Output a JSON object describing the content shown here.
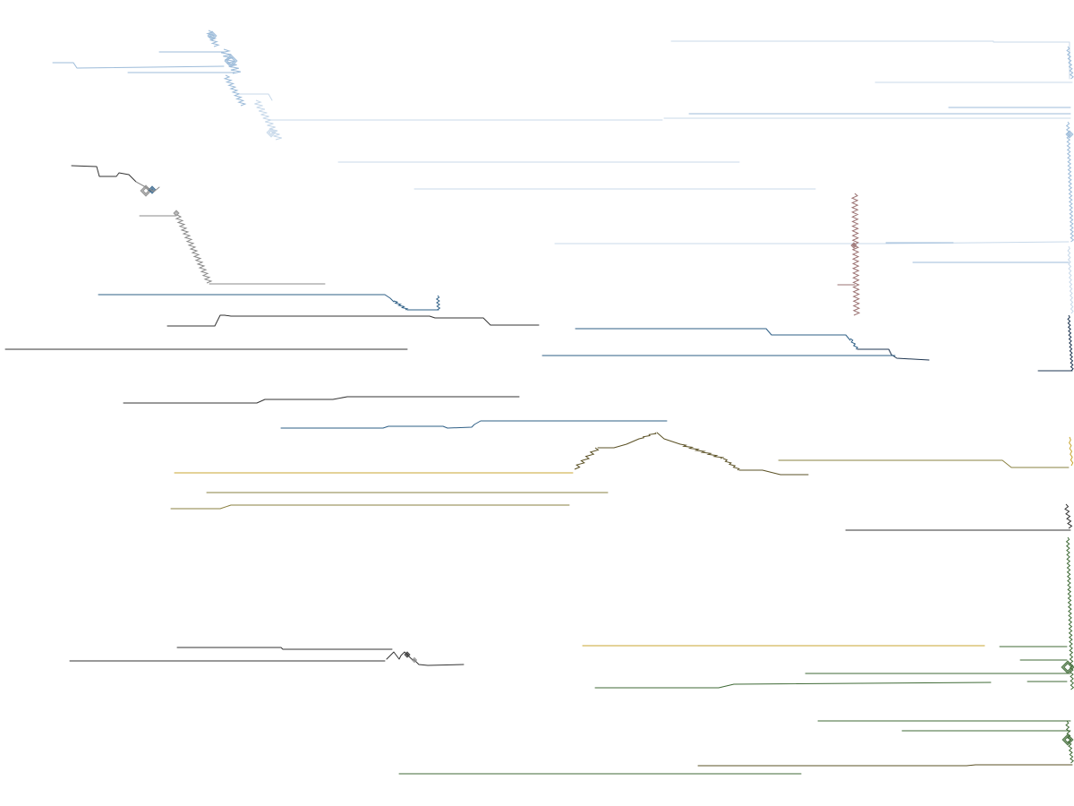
{
  "palette": {
    "background": "#ffffff",
    "light_blue": "#9cbbd9",
    "pale_blue": "#c8d9ea",
    "steel_blue": "#2e5f86",
    "dark_navy": "#1e3550",
    "gray": "#8a8a8a",
    "dark_gray": "#333333",
    "mustard": "#c9a630",
    "olive": "#8a8040",
    "dark_olive": "#5a5024",
    "forest_green": "#3f6a36",
    "mauve": "#9a7070"
  },
  "trace_groups": [
    {
      "name": "light-blue-cluster",
      "color_key": "light_blue"
    },
    {
      "name": "gray-cluster",
      "color_key": "gray"
    },
    {
      "name": "blue-steps",
      "color_key": "steel_blue"
    },
    {
      "name": "mustard-olive-cluster",
      "color_key": "mustard"
    },
    {
      "name": "black-step-cluster",
      "color_key": "dark_gray"
    },
    {
      "name": "green-cluster",
      "color_key": "forest_green"
    }
  ]
}
